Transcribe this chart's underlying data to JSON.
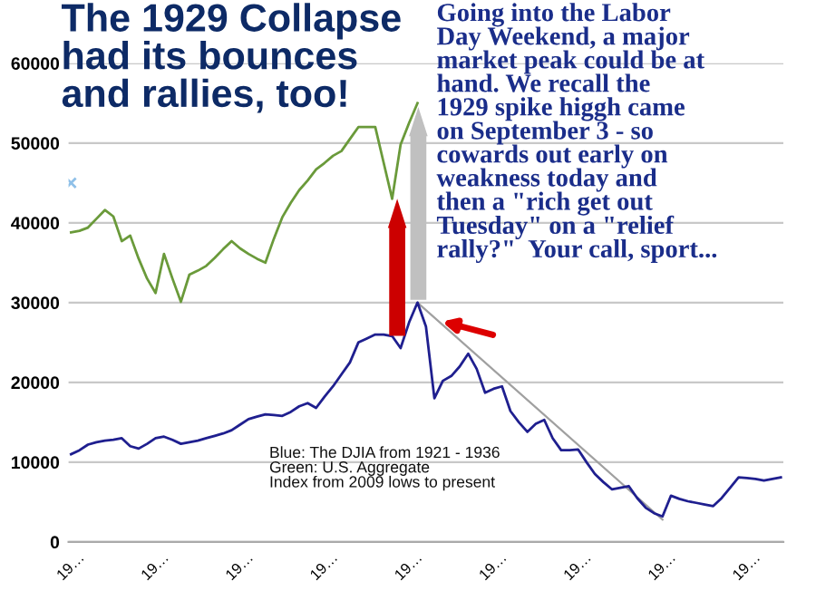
{
  "chart_data": {
    "type": "line",
    "title": "The 1929 Collapse\nhad its bounces\nand rallies, too!",
    "categories": [
      "19…",
      null,
      null,
      null,
      null,
      null,
      null,
      null,
      null,
      null,
      "19…",
      null,
      null,
      null,
      null,
      null,
      null,
      null,
      null,
      null,
      "19…",
      null,
      null,
      null,
      null,
      null,
      null,
      null,
      null,
      null,
      "19…",
      null,
      null,
      null,
      null,
      null,
      null,
      null,
      null,
      null,
      "19…",
      null,
      null,
      null,
      null,
      null,
      null,
      null,
      null,
      null,
      "19…",
      null,
      null,
      null,
      null,
      null,
      null,
      null,
      null,
      null,
      "19…",
      null,
      null,
      null,
      null,
      null,
      null,
      null,
      null,
      null,
      "19…",
      null,
      null,
      null,
      null,
      null,
      null,
      null,
      null,
      null,
      "19…",
      null,
      null,
      null,
      null
    ],
    "ylim": [
      0,
      60000
    ],
    "yticks": [
      0,
      10000,
      20000,
      30000,
      40000,
      50000,
      60000
    ],
    "grid": "y",
    "marker": "none",
    "line_style": "solid",
    "series": [
      {
        "color": "#1f1f8f",
        "values": [
          11000,
          11500,
          12200,
          12500,
          12700,
          12800,
          13000,
          12000,
          11700,
          12300,
          13000,
          13200,
          12800,
          12300,
          12500,
          12700,
          13000,
          13300,
          13600,
          14000,
          14700,
          15400,
          15700,
          16000,
          15900,
          15800,
          16300,
          17000,
          17400,
          16800,
          18200,
          19500,
          21000,
          22500,
          25000,
          25500,
          26000,
          26000,
          25800,
          24300,
          27500,
          30000,
          27000,
          18000,
          20200,
          20800,
          22000,
          23600,
          21700,
          18700,
          19200,
          19500,
          16400,
          15000,
          13800,
          14800,
          15300,
          13000,
          11500,
          11500,
          11600,
          10000,
          8500,
          7500,
          6600,
          6800,
          7000,
          5500,
          4300,
          3600,
          3200,
          5800,
          5400,
          5100,
          4900,
          4700,
          4500,
          5500,
          6800,
          8100,
          8000,
          7900,
          7700,
          7900,
          8100
        ]
      },
      {
        "color": "#6a9a3a",
        "values": [
          38800,
          39000,
          39400,
          40500,
          41600,
          40800,
          37700,
          38400,
          35500,
          33000,
          31200,
          36100,
          33000,
          30100,
          33500,
          34000,
          34600,
          35600,
          36700,
          37700,
          36800,
          36100,
          35500,
          35000,
          38000,
          40700,
          42500,
          44100,
          45300,
          46700,
          47500,
          48400,
          49000,
          50500,
          52000,
          52000,
          52000,
          47500,
          43000,
          49800,
          52500,
          55000,
          null,
          null,
          null,
          null,
          null,
          null,
          null,
          null,
          null,
          null,
          null,
          null,
          null,
          null,
          null,
          null,
          null,
          null,
          null,
          null,
          null,
          null,
          null,
          null,
          null,
          null,
          null,
          null,
          null,
          null,
          null,
          null,
          null,
          null,
          null,
          null,
          null,
          null,
          null,
          null,
          null,
          null,
          null
        ]
      },
      {
        "type": "line",
        "color": "#a0a0a0",
        "values": [
          null,
          null,
          null,
          null,
          null,
          null,
          null,
          null,
          null,
          null,
          null,
          null,
          null,
          null,
          null,
          null,
          null,
          null,
          null,
          null,
          null,
          null,
          null,
          null,
          null,
          null,
          null,
          null,
          null,
          null,
          null,
          null,
          null,
          null,
          null,
          null,
          null,
          null,
          null,
          null,
          null,
          30000,
          null,
          null,
          null,
          null,
          null,
          null,
          null,
          null,
          null,
          null,
          null,
          null,
          null,
          null,
          null,
          null,
          null,
          null,
          null,
          null,
          null,
          null,
          null,
          null,
          null,
          null,
          null,
          null,
          2800,
          null,
          null,
          null,
          null,
          null,
          null,
          null,
          null,
          null,
          null,
          null,
          null,
          null,
          null
        ]
      },
      {
        "type": "scatter",
        "marker": "cross",
        "color": "#8fc0e8",
        "values": [
          45000,
          null,
          null,
          null,
          null,
          null,
          null,
          null,
          null,
          null,
          null,
          null,
          null,
          null,
          null,
          null,
          null,
          null,
          null,
          null,
          null,
          null,
          null,
          null,
          null,
          null,
          null,
          null,
          null,
          null,
          null,
          null,
          null,
          null,
          null,
          null,
          null,
          null,
          null,
          null,
          null,
          null,
          null,
          null,
          null,
          null,
          null,
          null,
          null,
          null,
          null,
          null,
          null,
          null,
          null,
          null,
          null,
          null,
          null,
          null,
          null,
          null,
          null,
          null,
          null,
          null,
          null,
          null,
          null,
          null,
          null,
          null,
          null,
          null,
          null,
          null,
          null,
          null,
          null,
          null,
          null,
          null,
          null,
          null,
          null
        ]
      }
    ],
    "annotations": [
      "Going into the Labor\nDay Weekend, a major\nmarket peak could be at\nhand. We recall the\n1929 spike higgh came\non September 3 - so\ncowards out early on\nweakness today and\nthen a \"rich get out\nTuesday\" on a \"relief\nrally?\"  Your call, sport...",
      "Blue: The DJIA from 1921 - 1936\nGreen: U.S. Aggregate\nIndex from 2009 lows to present"
    ]
  }
}
